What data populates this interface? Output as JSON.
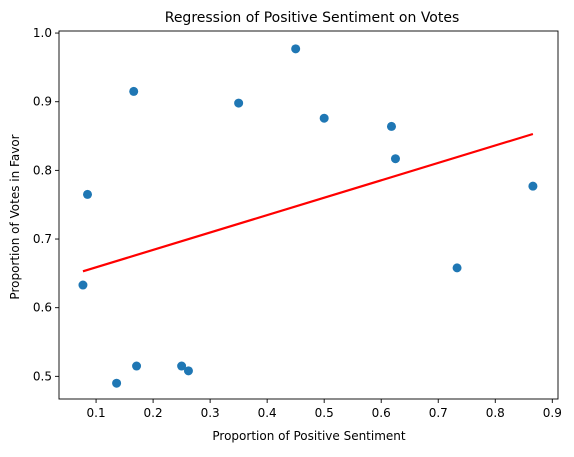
{
  "chart_data": {
    "type": "scatter",
    "title": "Regression of Positive Sentiment on Votes",
    "xlabel": "Proportion of Positive Sentiment",
    "ylabel": "Proportion of Votes in Favor",
    "xlim": [
      0.035,
      0.91
    ],
    "ylim": [
      0.467,
      1.003
    ],
    "xticks": [
      0.1,
      0.2,
      0.3,
      0.4,
      0.5,
      0.6,
      0.7,
      0.8,
      0.9
    ],
    "xtick_labels": [
      "0.1",
      "0.2",
      "0.3",
      "0.4",
      "0.5",
      "0.6",
      "0.7",
      "0.8",
      "0.9"
    ],
    "yticks": [
      0.5,
      0.6,
      0.7,
      0.8,
      0.9,
      1.0
    ],
    "ytick_labels": [
      "0.5",
      "0.6",
      "0.7",
      "0.8",
      "0.9",
      "1.0"
    ],
    "grid": false,
    "series": [
      {
        "kind": "scatter",
        "color": "#1f77b4",
        "points": [
          {
            "x": 0.077,
            "y": 0.633
          },
          {
            "x": 0.085,
            "y": 0.765
          },
          {
            "x": 0.136,
            "y": 0.49
          },
          {
            "x": 0.166,
            "y": 0.915
          },
          {
            "x": 0.171,
            "y": 0.515
          },
          {
            "x": 0.25,
            "y": 0.515
          },
          {
            "x": 0.262,
            "y": 0.508
          },
          {
            "x": 0.35,
            "y": 0.898
          },
          {
            "x": 0.45,
            "y": 0.977
          },
          {
            "x": 0.5,
            "y": 0.876
          },
          {
            "x": 0.618,
            "y": 0.864
          },
          {
            "x": 0.625,
            "y": 0.817
          },
          {
            "x": 0.733,
            "y": 0.658
          },
          {
            "x": 0.866,
            "y": 0.777
          }
        ]
      },
      {
        "kind": "line",
        "color": "#ff0000",
        "points": [
          {
            "x": 0.077,
            "y": 0.653
          },
          {
            "x": 0.866,
            "y": 0.853
          }
        ]
      }
    ]
  }
}
